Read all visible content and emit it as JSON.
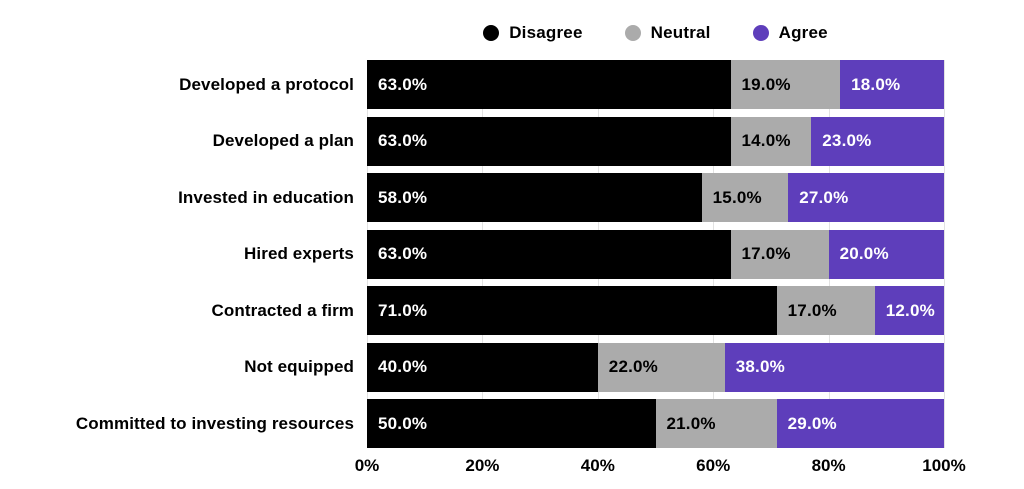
{
  "legend": {
    "items": [
      {
        "label": "Disagree",
        "color": "#000000"
      },
      {
        "label": "Neutral",
        "color": "#ABABAB"
      },
      {
        "label": "Agree",
        "color": "#5E3EBB"
      }
    ]
  },
  "colors": {
    "background": "#ffffff",
    "gridline": "#e2e2e2",
    "axis_text": "#000000"
  },
  "chart_data": {
    "type": "bar",
    "orientation": "horizontal",
    "stacked": true,
    "unit": "%",
    "title": "",
    "xlabel": "",
    "ylabel": "",
    "xlim": [
      0,
      100
    ],
    "grid": true,
    "legend_position": "top",
    "categories": [
      "Developed a protocol",
      "Developed a plan",
      "Invested in education",
      "Hired experts",
      "Contracted a firm",
      "Not equipped",
      "Committed to investing resources"
    ],
    "series": [
      {
        "name": "Disagree",
        "color": "#000000",
        "text_color": "#ffffff",
        "values": [
          63,
          63,
          58,
          63,
          71,
          40,
          50
        ]
      },
      {
        "name": "Neutral",
        "color": "#ABABAB",
        "text_color": "#000000",
        "values": [
          19,
          14,
          15,
          17,
          17,
          22,
          21
        ]
      },
      {
        "name": "Agree",
        "color": "#5E3EBB",
        "text_color": "#ffffff",
        "values": [
          18,
          23,
          27,
          20,
          12,
          38,
          29
        ]
      }
    ],
    "value_labels": [
      [
        "63.0%",
        "19.0%",
        "18.0%"
      ],
      [
        "63.0%",
        "14.0%",
        "23.0%"
      ],
      [
        "58.0%",
        "15.0%",
        "27.0%"
      ],
      [
        "63.0%",
        "17.0%",
        "20.0%"
      ],
      [
        "71.0%",
        "17.0%",
        "12.0%"
      ],
      [
        "40.0%",
        "22.0%",
        "38.0%"
      ],
      [
        "50.0%",
        "21.0%",
        "29.0%"
      ]
    ],
    "x_ticks": [
      "0%",
      "20%",
      "40%",
      "60%",
      "80%",
      "100%"
    ],
    "x_tick_positions": [
      0,
      20,
      40,
      60,
      80,
      100
    ]
  }
}
